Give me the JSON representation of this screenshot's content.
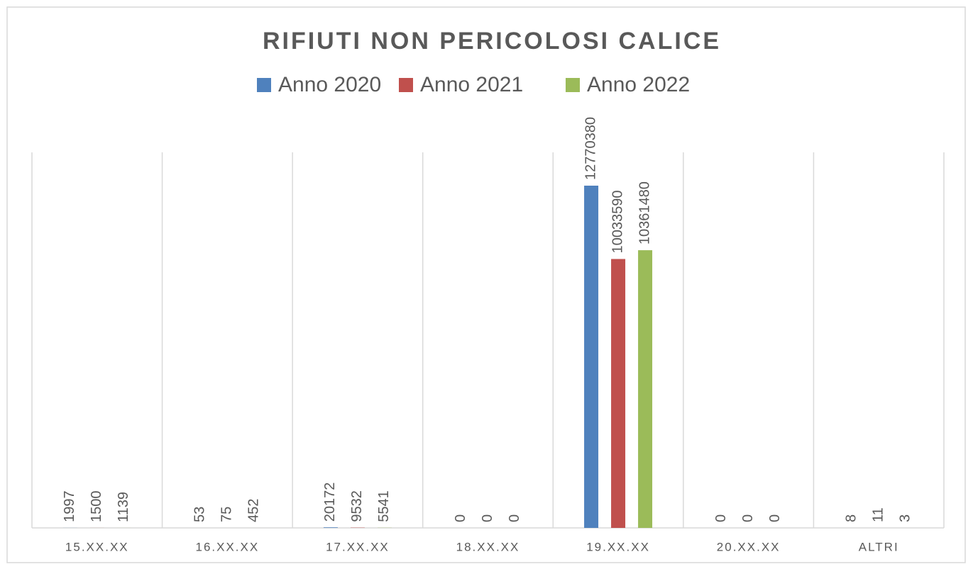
{
  "chart_data": {
    "type": "bar",
    "title": "RIFIUTI NON PERICOLOSI CALICE",
    "categories": [
      "15.XX.XX",
      "16.XX.XX",
      "17.XX.XX",
      "18.XX.XX",
      "19.XX.XX",
      "20.XX.XX",
      "ALTRI"
    ],
    "series": [
      {
        "name": "Anno 2020",
        "color": "#4f81bd",
        "values": [
          1997,
          53,
          20172,
          0,
          12770380,
          0,
          8
        ]
      },
      {
        "name": "Anno 2021",
        "color": "#c0504d",
        "values": [
          1500,
          75,
          9532,
          0,
          10033590,
          0,
          11
        ]
      },
      {
        "name": "Anno 2022",
        "color": "#9bbb59",
        "values": [
          1139,
          452,
          5541,
          0,
          10361480,
          0,
          3
        ]
      }
    ],
    "legend": "top"
  }
}
